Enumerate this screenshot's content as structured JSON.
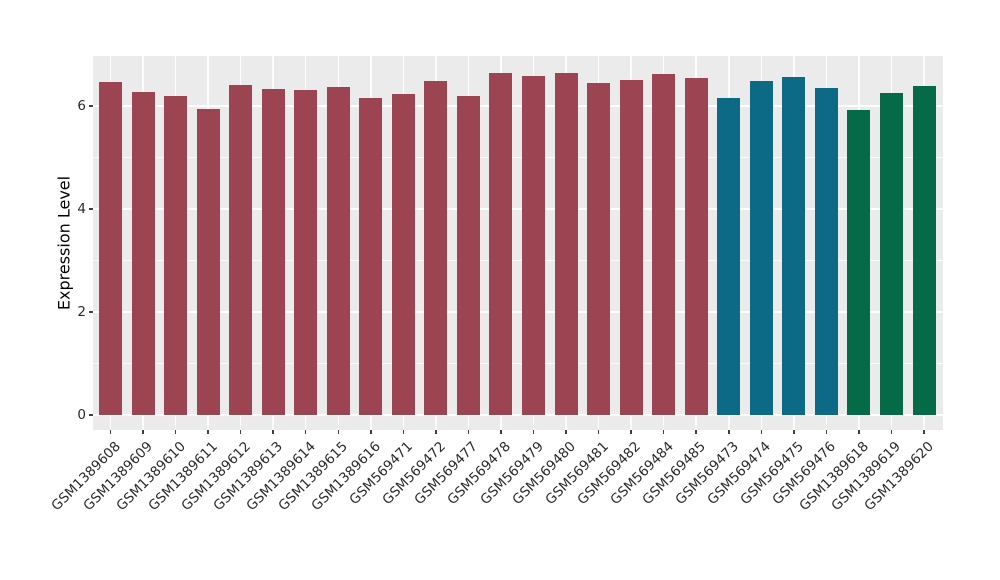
{
  "chart_data": {
    "type": "bar",
    "title": "",
    "xlabel": "",
    "ylabel": "Expression Level",
    "ylim": [
      -0.3,
      6.95
    ],
    "yticks": [
      0,
      2,
      4,
      6
    ],
    "minor_gridlines_y": [
      1,
      3,
      5
    ],
    "grid": "on",
    "legend": "none",
    "panel_background": "#EBEBEB",
    "gridline_color": "#FFFFFF",
    "x_tick_label_rotation_deg": 45,
    "categories": [
      "GSM1389608",
      "GSM1389609",
      "GSM1389610",
      "GSM1389611",
      "GSM1389612",
      "GSM1389613",
      "GSM1389614",
      "GSM1389615",
      "GSM1389616",
      "GSM569471",
      "GSM569472",
      "GSM569477",
      "GSM569478",
      "GSM569479",
      "GSM569480",
      "GSM569481",
      "GSM569482",
      "GSM569484",
      "GSM569485",
      "GSM569473",
      "GSM569474",
      "GSM569475",
      "GSM569476",
      "GSM1389618",
      "GSM1389619",
      "GSM1389620"
    ],
    "values": [
      6.46,
      6.27,
      6.19,
      5.95,
      6.41,
      6.33,
      6.31,
      6.37,
      6.16,
      6.23,
      6.48,
      6.19,
      6.64,
      6.58,
      6.64,
      6.45,
      6.5,
      6.62,
      6.54,
      6.16,
      6.48,
      6.56,
      6.35,
      5.93,
      6.25,
      6.38
    ],
    "bar_colors": [
      "#9D4452",
      "#9D4452",
      "#9D4452",
      "#9D4452",
      "#9D4452",
      "#9D4452",
      "#9D4452",
      "#9D4452",
      "#9D4452",
      "#9D4452",
      "#9D4452",
      "#9D4452",
      "#9D4452",
      "#9D4452",
      "#9D4452",
      "#9D4452",
      "#9D4452",
      "#9D4452",
      "#9D4452",
      "#0C6A87",
      "#0C6A87",
      "#0C6A87",
      "#0C6A87",
      "#046A47",
      "#046A47",
      "#046A47"
    ],
    "color_groups": [
      {
        "color": "#9D4452",
        "bar_count": 19
      },
      {
        "color": "#0C6A87",
        "bar_count": 4
      },
      {
        "color": "#046A47",
        "bar_count": 3
      }
    ]
  }
}
